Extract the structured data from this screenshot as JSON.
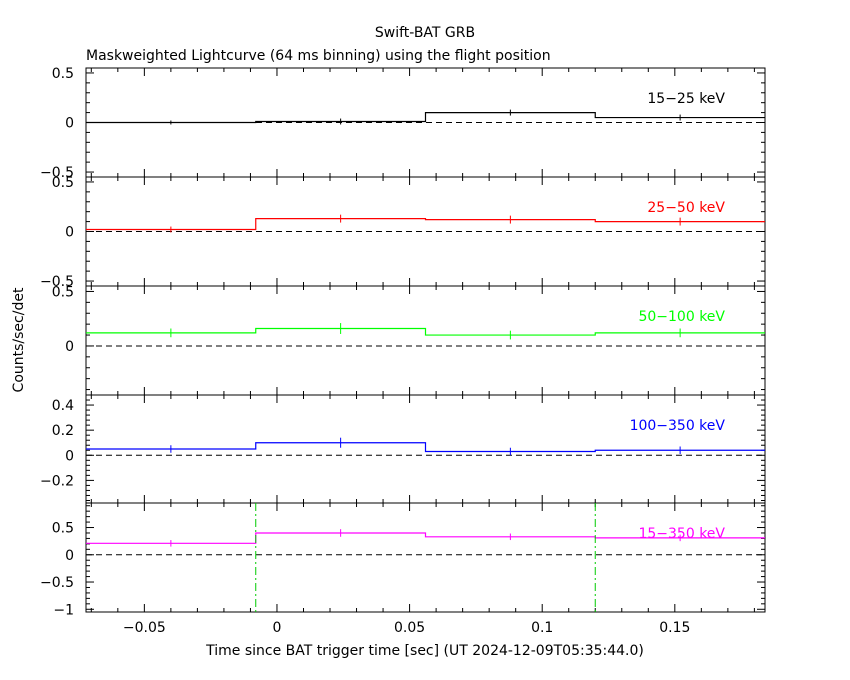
{
  "header": {
    "title": "Swift-BAT GRB",
    "subtitle": "Maskweighted Lightcurve (64 ms binning) using the flight position"
  },
  "axes": {
    "ylabel": "Counts/sec/det",
    "xlabel": "Time since BAT trigger time [sec] (UT 2024-12-09T05:35:44.0)"
  },
  "chart_data": {
    "type": "line",
    "title": "Swift-BAT GRB",
    "subtitle": "Maskweighted Lightcurve (64 ms binning) using the flight position",
    "xlabel": "Time since BAT trigger time [sec] (UT 2024-12-09T05:35:44.0)",
    "ylabel": "Counts/sec/det",
    "xlim": [
      -0.072,
      0.184
    ],
    "x_ticks": [
      -0.05,
      0,
      0.05,
      0.1,
      0.15
    ],
    "x_tick_labels": [
      "-0.05",
      "0",
      "0.05",
      "0.1",
      "0.15"
    ],
    "bin_edges": [
      -0.072,
      -0.008,
      0.056,
      0.12,
      0.184
    ],
    "bin_centers": [
      -0.04,
      0.024,
      0.088,
      0.152
    ],
    "panels": [
      {
        "band": "15-25 keV",
        "color": "#000000",
        "ylim": [
          -0.55,
          0.55
        ],
        "y_ticks": [
          -0.5,
          0,
          0.5
        ],
        "y_tick_labels": [
          "-0.5",
          "0",
          "0.5"
        ],
        "values": [
          0.0,
          0.01,
          0.1,
          0.05
        ],
        "errors": [
          0.02,
          0.03,
          0.03,
          0.03
        ]
      },
      {
        "band": "25-50 keV",
        "color": "#ff0000",
        "ylim": [
          -0.55,
          0.55
        ],
        "y_ticks": [
          -0.5,
          0,
          0.5
        ],
        "y_tick_labels": [
          "-0.5",
          "0",
          "0.5"
        ],
        "values": [
          0.02,
          0.13,
          0.12,
          0.1
        ],
        "errors": [
          0.03,
          0.04,
          0.04,
          0.04
        ]
      },
      {
        "band": "50-100 keV",
        "color": "#00ff00",
        "ylim": [
          -0.45,
          0.55
        ],
        "y_ticks": [
          0,
          0.5
        ],
        "y_tick_labels": [
          "0",
          "0.5"
        ],
        "values": [
          0.12,
          0.16,
          0.1,
          0.12
        ],
        "errors": [
          0.04,
          0.05,
          0.04,
          0.04
        ]
      },
      {
        "band": "100-350 keV",
        "color": "#0000ff",
        "ylim": [
          -0.38,
          0.48
        ],
        "y_ticks": [
          -0.2,
          0,
          0.2,
          0.4
        ],
        "y_tick_labels": [
          "-0.2",
          "0",
          "0.2",
          "0.4"
        ],
        "values": [
          0.05,
          0.1,
          0.03,
          0.04
        ],
        "errors": [
          0.03,
          0.04,
          0.03,
          0.03
        ]
      },
      {
        "band": "15-350 keV",
        "color": "#ff00ff",
        "ylim": [
          -1.05,
          0.95
        ],
        "y_ticks": [
          -1,
          -0.5,
          0,
          0.5
        ],
        "y_tick_labels": [
          "-1",
          "-0.5",
          "0",
          "0.5"
        ],
        "values": [
          0.21,
          0.4,
          0.33,
          0.31
        ],
        "errors": [
          0.06,
          0.07,
          0.06,
          0.06
        ],
        "markers_x": [
          -0.008,
          0.12
        ],
        "marker_color": "#00cc00"
      }
    ]
  }
}
